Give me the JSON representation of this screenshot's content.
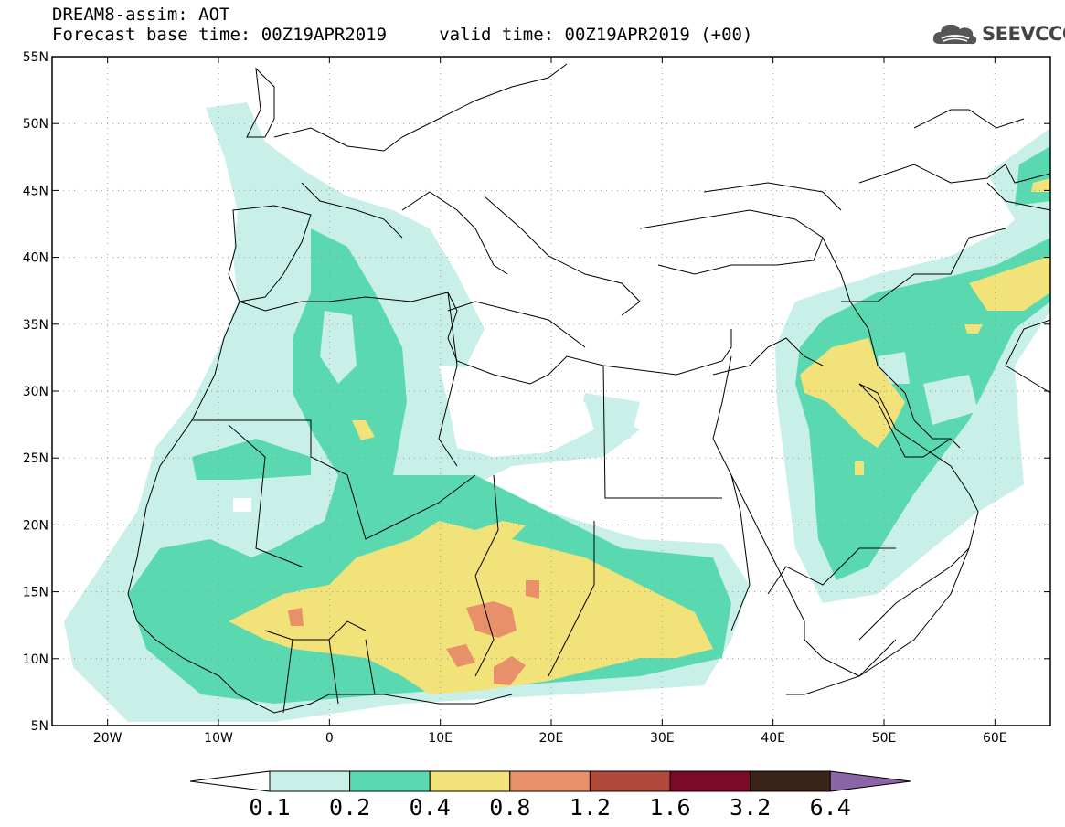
{
  "title": {
    "line1": "DREAM8-assim: AOT",
    "line2": "Forecast base time: 00Z19APR2019     valid time: 00Z19APR2019 (+00)"
  },
  "logo": {
    "text": "SEEVCCC",
    "icon": "cloud-icon"
  },
  "map": {
    "lon_range": [
      -25,
      65
    ],
    "lat_range": [
      5,
      55
    ],
    "grid": "dotted",
    "lat_labels": [
      "55N",
      "50N",
      "45N",
      "40N",
      "35N",
      "30N",
      "25N",
      "20N",
      "15N",
      "10N",
      "5N"
    ],
    "lat_values": [
      55,
      50,
      45,
      40,
      35,
      30,
      25,
      20,
      15,
      10,
      5
    ],
    "lon_labels": [
      "20W",
      "10W",
      "0",
      "10E",
      "20E",
      "30E",
      "40E",
      "50E",
      "60E"
    ],
    "lon_values": [
      -20,
      -10,
      0,
      10,
      20,
      30,
      40,
      50,
      60
    ]
  },
  "colorbar": {
    "labels": [
      "0.1",
      "0.2",
      "0.4",
      "0.8",
      "1.2",
      "1.6",
      "3.2",
      "6.4"
    ],
    "colors": [
      "#c8f0e8",
      "#5ad9b0",
      "#f2e27a",
      "#e8906a",
      "#b0483c",
      "#7a0a28",
      "#3a2418",
      "#8c64a8"
    ],
    "below_color": "#ffffff"
  }
}
